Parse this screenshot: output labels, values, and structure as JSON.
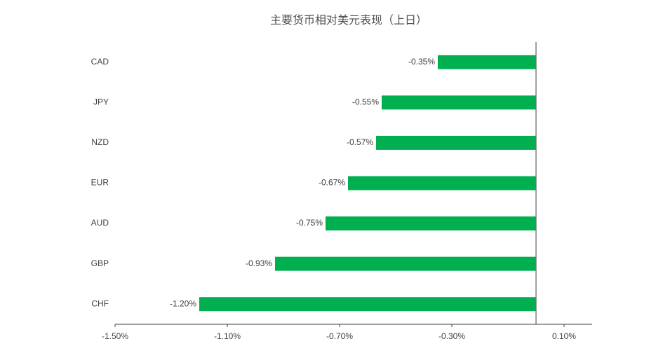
{
  "chart_data": {
    "type": "hbar",
    "title": "主要货币相对美元表现（上日）",
    "categories": [
      "CAD",
      "JPY",
      "NZD",
      "EUR",
      "AUD",
      "GBP",
      "CHF"
    ],
    "values": [
      -0.35,
      -0.55,
      -0.57,
      -0.67,
      -0.75,
      -0.93,
      -1.2
    ],
    "value_labels": [
      "-0.35%",
      "-0.55%",
      "-0.57%",
      "-0.67%",
      "-0.75%",
      "-0.93%",
      "-1.20%"
    ],
    "color": "#00b050",
    "xlim": [
      -1.5,
      0.2
    ],
    "xticks": [
      {
        "value": -1.5,
        "label": "-1.50%"
      },
      {
        "value": -1.1,
        "label": "-1.10%"
      },
      {
        "value": -0.7,
        "label": "-0.70%"
      },
      {
        "value": -0.3,
        "label": "-0.30%"
      },
      {
        "value": 0.1,
        "label": "0.10%"
      }
    ],
    "grid": false
  }
}
